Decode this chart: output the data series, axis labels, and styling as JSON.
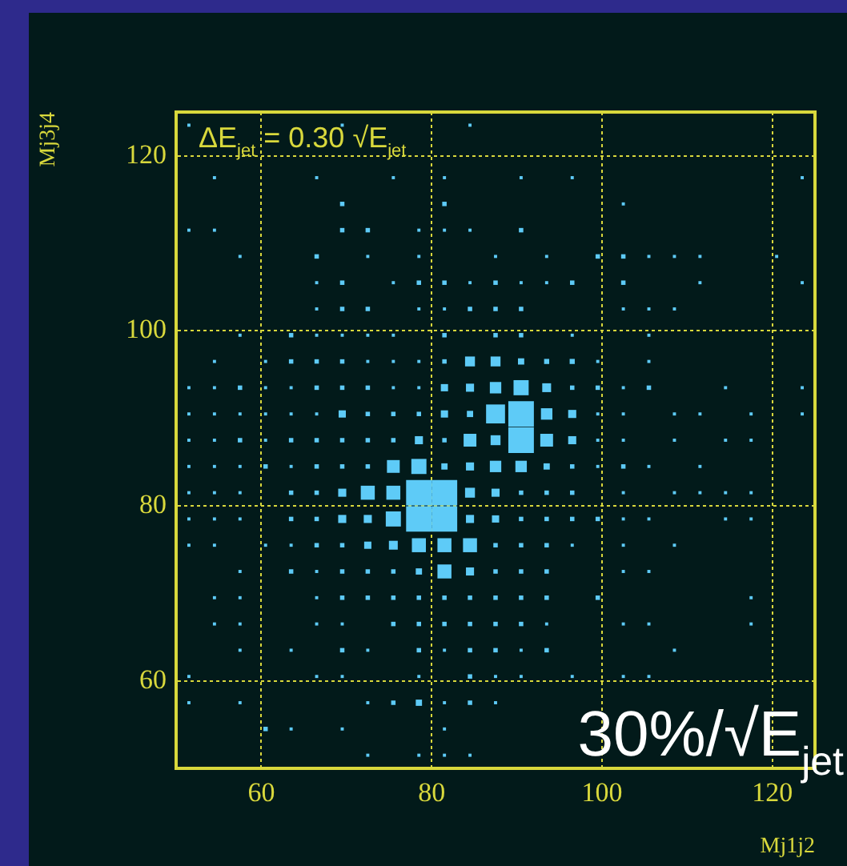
{
  "chart_data": {
    "type": "bubble",
    "marker": "square",
    "grid": true,
    "legend": false,
    "xlabel": "Mj1j2",
    "ylabel": "Mj3j4",
    "xlim": [
      50,
      125
    ],
    "ylim": [
      50,
      125
    ],
    "xticks": [
      60,
      80,
      100,
      120
    ],
    "yticks": [
      60,
      80,
      100,
      120
    ],
    "annotations": [
      "ΔE$_{jet}$ = 0.30 √E$_{jet}$",
      "30%/√E$_{jet}$"
    ],
    "series": [
      {
        "color": "#5ecbf7",
        "x": [
          51.5,
          69.5,
          84.5,
          54.5,
          66.5,
          75.5,
          81.5,
          90.5,
          96.5,
          123.5,
          69.5,
          81.5,
          102.5,
          51.5,
          54.5,
          69.5,
          72.5,
          78.5,
          81.5,
          84.5,
          90.5,
          57.5,
          66.5,
          72.5,
          78.5,
          87.5,
          93.5,
          99.5,
          102.5,
          105.5,
          108.5,
          111.5,
          120.5,
          66.5,
          69.5,
          75.5,
          78.5,
          81.5,
          84.5,
          87.5,
          90.5,
          93.5,
          96.5,
          102.5,
          111.5,
          123.5,
          66.5,
          69.5,
          72.5,
          78.5,
          81.5,
          84.5,
          87.5,
          90.5,
          102.5,
          105.5,
          108.5,
          57.5,
          63.5,
          66.5,
          69.5,
          72.5,
          75.5,
          81.5,
          87.5,
          90.5,
          96.5,
          105.5,
          54.5,
          60.5,
          63.5,
          66.5,
          69.5,
          72.5,
          75.5,
          78.5,
          81.5,
          84.5,
          87.5,
          90.5,
          93.5,
          96.5,
          99.5,
          105.5,
          51.5,
          54.5,
          57.5,
          60.5,
          63.5,
          66.5,
          69.5,
          72.5,
          75.5,
          78.5,
          81.5,
          84.5,
          87.5,
          90.5,
          93.5,
          96.5,
          99.5,
          102.5,
          105.5,
          114.5,
          123.5,
          51.5,
          54.5,
          57.5,
          60.5,
          63.5,
          66.5,
          69.5,
          72.5,
          75.5,
          78.5,
          81.5,
          84.5,
          87.5,
          90.5,
          93.5,
          96.5,
          99.5,
          102.5,
          108.5,
          111.5,
          117.5,
          123.5,
          51.5,
          54.5,
          57.5,
          60.5,
          63.5,
          66.5,
          69.5,
          72.5,
          75.5,
          78.5,
          81.5,
          84.5,
          87.5,
          90.5,
          93.5,
          96.5,
          99.5,
          102.5,
          108.5,
          114.5,
          117.5,
          51.5,
          54.5,
          57.5,
          60.5,
          63.5,
          66.5,
          69.5,
          72.5,
          75.5,
          78.5,
          81.5,
          84.5,
          87.5,
          90.5,
          93.5,
          96.5,
          99.5,
          102.5,
          105.5,
          111.5,
          51.5,
          54.5,
          57.5,
          63.5,
          66.5,
          69.5,
          72.5,
          75.5,
          78.5,
          81.5,
          84.5,
          87.5,
          90.5,
          93.5,
          96.5,
          102.5,
          108.5,
          111.5,
          114.5,
          117.5,
          51.5,
          54.5,
          57.5,
          63.5,
          66.5,
          69.5,
          72.5,
          75.5,
          78.5,
          81.5,
          84.5,
          87.5,
          90.5,
          93.5,
          96.5,
          99.5,
          102.5,
          105.5,
          114.5,
          117.5,
          51.5,
          54.5,
          60.5,
          63.5,
          66.5,
          69.5,
          72.5,
          75.5,
          78.5,
          81.5,
          84.5,
          87.5,
          90.5,
          93.5,
          96.5,
          102.5,
          108.5,
          57.5,
          63.5,
          66.5,
          69.5,
          72.5,
          75.5,
          78.5,
          81.5,
          84.5,
          87.5,
          90.5,
          93.5,
          102.5,
          105.5,
          54.5,
          57.5,
          66.5,
          69.5,
          72.5,
          75.5,
          78.5,
          81.5,
          84.5,
          87.5,
          90.5,
          93.5,
          99.5,
          117.5,
          54.5,
          57.5,
          66.5,
          69.5,
          75.5,
          78.5,
          81.5,
          84.5,
          87.5,
          90.5,
          93.5,
          102.5,
          105.5,
          117.5,
          57.5,
          63.5,
          69.5,
          72.5,
          78.5,
          81.5,
          84.5,
          87.5,
          90.5,
          93.5,
          108.5,
          51.5,
          66.5,
          69.5,
          78.5,
          84.5,
          87.5,
          90.5,
          96.5,
          102.5,
          105.5,
          51.5,
          57.5,
          72.5,
          75.5,
          78.5,
          81.5,
          84.5,
          87.5,
          60.5,
          63.5,
          69.5,
          81.5,
          72.5,
          78.5,
          81.5,
          84.5
        ],
        "values": [
          123.5,
          123.5,
          123.5,
          117.5,
          117.5,
          117.5,
          117.5,
          117.5,
          117.5,
          117.5,
          114.5,
          114.5,
          114.5,
          111.5,
          111.5,
          111.5,
          111.5,
          111.5,
          111.5,
          111.5,
          111.5,
          108.5,
          108.5,
          108.5,
          108.5,
          108.5,
          108.5,
          108.5,
          108.5,
          108.5,
          108.5,
          108.5,
          108.5,
          105.5,
          105.5,
          105.5,
          105.5,
          105.5,
          105.5,
          105.5,
          105.5,
          105.5,
          105.5,
          105.5,
          105.5,
          105.5,
          102.5,
          102.5,
          102.5,
          102.5,
          102.5,
          102.5,
          102.5,
          102.5,
          102.5,
          102.5,
          102.5,
          99.5,
          99.5,
          99.5,
          99.5,
          99.5,
          99.5,
          99.5,
          99.5,
          99.5,
          99.5,
          99.5,
          96.5,
          96.5,
          96.5,
          96.5,
          96.5,
          96.5,
          96.5,
          96.5,
          96.5,
          96.5,
          96.5,
          96.5,
          96.5,
          96.5,
          96.5,
          96.5,
          93.5,
          93.5,
          93.5,
          93.5,
          93.5,
          93.5,
          93.5,
          93.5,
          93.5,
          93.5,
          93.5,
          93.5,
          93.5,
          93.5,
          93.5,
          93.5,
          93.5,
          93.5,
          93.5,
          93.5,
          93.5,
          90.5,
          90.5,
          90.5,
          90.5,
          90.5,
          90.5,
          90.5,
          90.5,
          90.5,
          90.5,
          90.5,
          90.5,
          90.5,
          90.5,
          90.5,
          90.5,
          90.5,
          90.5,
          90.5,
          90.5,
          90.5,
          90.5,
          87.5,
          87.5,
          87.5,
          87.5,
          87.5,
          87.5,
          87.5,
          87.5,
          87.5,
          87.5,
          87.5,
          87.5,
          87.5,
          87.5,
          87.5,
          87.5,
          87.5,
          87.5,
          87.5,
          87.5,
          87.5,
          84.5,
          84.5,
          84.5,
          84.5,
          84.5,
          84.5,
          84.5,
          84.5,
          84.5,
          84.5,
          84.5,
          84.5,
          84.5,
          84.5,
          84.5,
          84.5,
          84.5,
          84.5,
          84.5,
          84.5,
          81.5,
          81.5,
          81.5,
          81.5,
          81.5,
          81.5,
          81.5,
          81.5,
          81.5,
          81.5,
          81.5,
          81.5,
          81.5,
          81.5,
          81.5,
          81.5,
          81.5,
          81.5,
          81.5,
          81.5,
          78.5,
          78.5,
          78.5,
          78.5,
          78.5,
          78.5,
          78.5,
          78.5,
          78.5,
          78.5,
          78.5,
          78.5,
          78.5,
          78.5,
          78.5,
          78.5,
          78.5,
          78.5,
          78.5,
          78.5,
          75.5,
          75.5,
          75.5,
          75.5,
          75.5,
          75.5,
          75.5,
          75.5,
          75.5,
          75.5,
          75.5,
          75.5,
          75.5,
          75.5,
          75.5,
          75.5,
          75.5,
          72.5,
          72.5,
          72.5,
          72.5,
          72.5,
          72.5,
          72.5,
          72.5,
          72.5,
          72.5,
          72.5,
          72.5,
          72.5,
          72.5,
          69.5,
          69.5,
          69.5,
          69.5,
          69.5,
          69.5,
          69.5,
          69.5,
          69.5,
          69.5,
          69.5,
          69.5,
          69.5,
          69.5,
          66.5,
          66.5,
          66.5,
          66.5,
          66.5,
          66.5,
          66.5,
          66.5,
          66.5,
          66.5,
          66.5,
          66.5,
          66.5,
          66.5,
          63.5,
          63.5,
          63.5,
          63.5,
          63.5,
          63.5,
          63.5,
          63.5,
          63.5,
          63.5,
          63.5,
          60.5,
          60.5,
          60.5,
          60.5,
          60.5,
          60.5,
          60.5,
          60.5,
          60.5,
          60.5,
          57.5,
          57.5,
          57.5,
          57.5,
          57.5,
          57.5,
          57.5,
          57.5,
          54.5,
          54.5,
          54.5,
          54.5,
          51.5,
          51.5,
          51.5,
          51.5
        ],
        "sizes": [
          0.015,
          0.015,
          0.015,
          0.015,
          0.015,
          0.015,
          0.015,
          0.015,
          0.015,
          0.015,
          0.03,
          0.03,
          0.015,
          0.015,
          0.015,
          0.03,
          0.03,
          0.015,
          0.015,
          0.015,
          0.03,
          0.015,
          0.03,
          0.015,
          0.015,
          0.015,
          0.015,
          0.03,
          0.03,
          0.015,
          0.015,
          0.015,
          0.015,
          0.015,
          0.03,
          0.015,
          0.03,
          0.03,
          0.015,
          0.03,
          0.015,
          0.015,
          0.03,
          0.03,
          0.015,
          0.015,
          0.015,
          0.03,
          0.03,
          0.015,
          0.015,
          0.03,
          0.03,
          0.03,
          0.015,
          0.015,
          0.015,
          0.015,
          0.03,
          0.015,
          0.015,
          0.015,
          0.015,
          0.03,
          0.03,
          0.03,
          0.015,
          0.015,
          0.015,
          0.015,
          0.03,
          0.03,
          0.03,
          0.015,
          0.015,
          0.015,
          0.03,
          0.15,
          0.15,
          0.06,
          0.04,
          0.04,
          0.015,
          0.015,
          0.015,
          0.015,
          0.03,
          0.015,
          0.015,
          0.03,
          0.03,
          0.03,
          0.015,
          0.015,
          0.08,
          0.1,
          0.2,
          0.35,
          0.12,
          0.03,
          0.03,
          0.015,
          0.03,
          0.015,
          0.015,
          0.015,
          0.015,
          0.015,
          0.015,
          0.015,
          0.015,
          0.08,
          0.03,
          0.03,
          0.03,
          0.08,
          0.06,
          0.55,
          1,
          0.2,
          0.1,
          0.015,
          0.015,
          0.015,
          0.015,
          0.015,
          0.015,
          0.015,
          0.015,
          0.03,
          0.015,
          0.03,
          0.03,
          0.03,
          0.03,
          0.03,
          0.1,
          0.03,
          0.25,
          0.15,
          1,
          0.25,
          0.1,
          0.015,
          0.015,
          0.015,
          0.015,
          0.015,
          0.015,
          0.015,
          0.015,
          0.03,
          0.015,
          0.03,
          0.03,
          0.03,
          0.25,
          0.35,
          0.06,
          0.1,
          0.2,
          0.2,
          0.06,
          0.03,
          0.015,
          0.03,
          0.015,
          0.015,
          0.015,
          0.015,
          0.015,
          0.03,
          0.03,
          0.1,
          0.3,
          0.3,
          1,
          1,
          0.15,
          0.1,
          0.03,
          0.03,
          0.03,
          0.015,
          0.015,
          0.015,
          0.015,
          0.015,
          0.015,
          0.015,
          0.015,
          0.03,
          0.03,
          0.1,
          0.1,
          0.35,
          1,
          1,
          0.1,
          0.08,
          0.03,
          0.03,
          0.03,
          0.03,
          0.015,
          0.015,
          0.015,
          0.015,
          0.015,
          0.015,
          0.015,
          0.015,
          0.03,
          0.03,
          0.08,
          0.12,
          0.3,
          0.3,
          0.3,
          0.03,
          0.03,
          0.03,
          0.015,
          0.015,
          0.015,
          0.015,
          0.03,
          0.015,
          0.03,
          0.03,
          0.03,
          0.06,
          0.3,
          0.1,
          0.03,
          0.03,
          0.03,
          0.015,
          0.015,
          0.015,
          0.015,
          0.015,
          0.03,
          0.03,
          0.03,
          0.03,
          0.03,
          0.03,
          0.03,
          0.03,
          0.03,
          0.03,
          0.015,
          0.015,
          0.015,
          0.015,
          0.015,
          0.03,
          0.03,
          0.03,
          0.03,
          0.03,
          0.03,
          0.015,
          0.015,
          0.015,
          0.015,
          0.015,
          0.015,
          0.03,
          0.015,
          0.03,
          0.015,
          0.03,
          0.03,
          0.015,
          0.03,
          0.015,
          0.015,
          0.015,
          0.015,
          0.015,
          0.03,
          0.015,
          0.015,
          0.015,
          0.015,
          0.015,
          0.015,
          0.015,
          0.015,
          0.03,
          0.06,
          0.015,
          0.03,
          0.015,
          0.03,
          0.015,
          0.015,
          0.015,
          0.015,
          0.015,
          0.015,
          0.015
        ]
      }
    ]
  }
}
